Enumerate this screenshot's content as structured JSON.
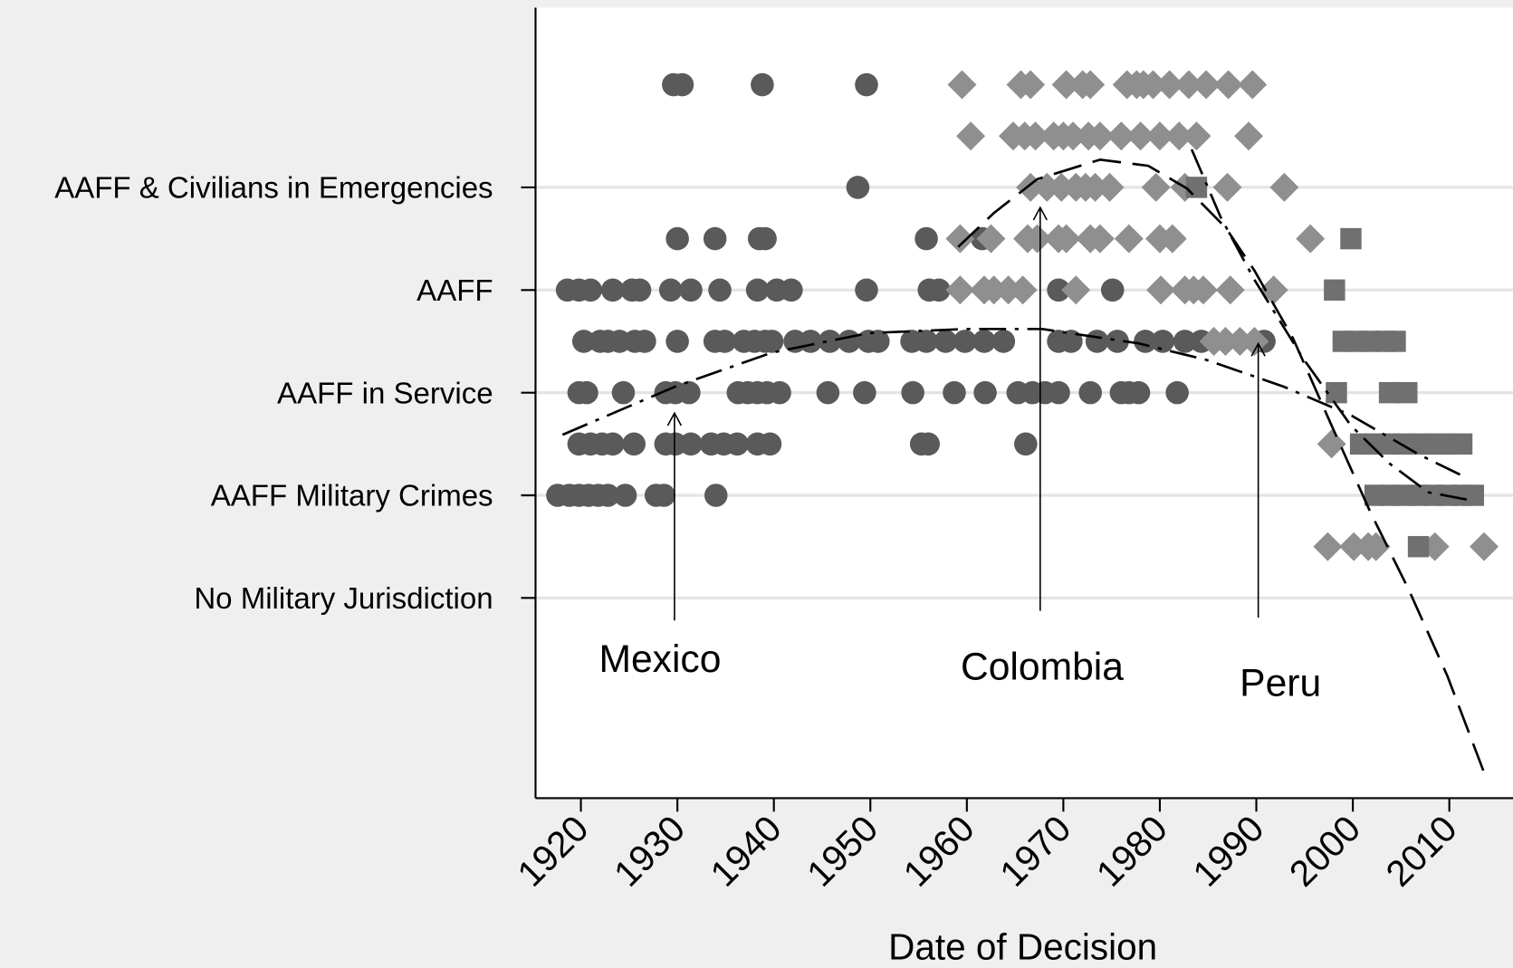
{
  "chart_data": {
    "type": "scatter",
    "xlabel": "Date of Decision",
    "xlim": [
      1915.3,
      2016.6
    ],
    "xticks": [
      1920,
      1930,
      1940,
      1950,
      1960,
      1970,
      1980,
      1990,
      2000,
      2010
    ],
    "ylim": [
      -1.95,
      5.75
    ],
    "yticks": [
      {
        "value": 0,
        "label": "No Military Jurisdiction"
      },
      {
        "value": 1,
        "label": "AAFF Military Crimes"
      },
      {
        "value": 2,
        "label": "AAFF in Service"
      },
      {
        "value": 3,
        "label": "AAFF"
      },
      {
        "value": 4,
        "label": "AAFF & Civilians in Emergencies"
      }
    ],
    "grid": true,
    "annotations": [
      "Mexico",
      "Colombia",
      "Peru"
    ],
    "series": [
      {
        "marker": "circle",
        "color": "#5a5a5a",
        "x": [
          1929.6,
          1930.5,
          1938.8,
          1949.6,
          1948.7,
          1930.0,
          1933.9,
          1938.5,
          1939.1,
          1955.8,
          1961.6,
          1918.6,
          1919.8,
          1921.0,
          1923.3,
          1925.3,
          1926.1,
          1929.3,
          1931.4,
          1934.4,
          1938.3,
          1940.3,
          1941.8,
          1949.6,
          1956.1,
          1957.1,
          1969.5,
          1975.1,
          1920.3,
          1922.0,
          1922.8,
          1924.0,
          1925.6,
          1926.6,
          1930.0,
          1933.9,
          1934.9,
          1936.9,
          1938.0,
          1939.1,
          1939.8,
          1942.2,
          1943.8,
          1945.8,
          1947.8,
          1949.8,
          1950.8,
          1954.3,
          1955.8,
          1957.8,
          1959.8,
          1961.8,
          1963.8,
          1969.5,
          1970.8,
          1973.5,
          1975.6,
          1978.5,
          1980.3,
          1982.6,
          1984.3,
          1990.8,
          1919.8,
          1920.6,
          1924.4,
          1928.8,
          1929.8,
          1931.2,
          1936.3,
          1937.3,
          1938.3,
          1939.3,
          1940.6,
          1945.6,
          1949.4,
          1954.4,
          1958.7,
          1961.9,
          1965.3,
          1966.8,
          1968.1,
          1969.5,
          1972.8,
          1976.0,
          1976.8,
          1977.8,
          1981.8,
          1919.8,
          1921.0,
          1922.2,
          1923.3,
          1925.5,
          1928.8,
          1929.8,
          1931.4,
          1933.5,
          1934.8,
          1936.2,
          1938.3,
          1939.6,
          1955.3,
          1956.0,
          1966.1,
          1917.6,
          1918.8,
          1919.8,
          1920.8,
          1921.8,
          1922.8,
          1924.6,
          1927.8,
          1928.6,
          1934.0
        ],
        "y": [
          5,
          5,
          5,
          5,
          4,
          3.5,
          3.5,
          3.5,
          3.5,
          3.5,
          3.5,
          3,
          3,
          3,
          3,
          3,
          3,
          3,
          3,
          3,
          3,
          3,
          3,
          3,
          3,
          3,
          3,
          3,
          2.5,
          2.5,
          2.5,
          2.5,
          2.5,
          2.5,
          2.5,
          2.5,
          2.5,
          2.5,
          2.5,
          2.5,
          2.5,
          2.5,
          2.5,
          2.5,
          2.5,
          2.5,
          2.5,
          2.5,
          2.5,
          2.5,
          2.5,
          2.5,
          2.5,
          2.5,
          2.5,
          2.5,
          2.5,
          2.5,
          2.5,
          2.5,
          2.5,
          2.5,
          2,
          2,
          2,
          2,
          2,
          2,
          2,
          2,
          2,
          2,
          2,
          2,
          2,
          2,
          2,
          2,
          2,
          2,
          2,
          2,
          2,
          2,
          2,
          2,
          2,
          1.5,
          1.5,
          1.5,
          1.5,
          1.5,
          1.5,
          1.5,
          1.5,
          1.5,
          1.5,
          1.5,
          1.5,
          1.5,
          1.5,
          1.5,
          1.5,
          1,
          1,
          1,
          1,
          1,
          1,
          1,
          1,
          1,
          1
        ]
      },
      {
        "marker": "diamond",
        "color": "#8f8f8f",
        "x": [
          1959.5,
          1965.6,
          1966.6,
          1970.3,
          1972.0,
          1972.8,
          1976.6,
          1977.6,
          1978.3,
          1979.3,
          1981.0,
          1983.0,
          1984.8,
          1987.1,
          1989.6,
          1960.4,
          1964.8,
          1966.0,
          1967.1,
          1969.0,
          1970.0,
          1971.0,
          1972.6,
          1973.8,
          1976.0,
          1978.0,
          1980.0,
          1982.0,
          1983.8,
          1989.2,
          1966.6,
          1968.3,
          1969.8,
          1971.3,
          1972.3,
          1973.3,
          1974.8,
          1979.6,
          1982.6,
          1987.0,
          1992.9,
          1959.3,
          1962.5,
          1966.3,
          1967.3,
          1969.5,
          1970.3,
          1972.8,
          1973.8,
          1976.8,
          1980.0,
          1981.3,
          1995.6,
          1959.3,
          1961.8,
          1962.8,
          1964.3,
          1965.8,
          1971.3,
          1980.1,
          1982.6,
          1983.5,
          1984.5,
          1987.3,
          1991.8,
          1985.6,
          1986.8,
          1988.3,
          1989.8,
          1997.8,
          1997.4,
          2000.1,
          2001.6,
          2002.4,
          2008.5,
          2013.6
        ],
        "y": [
          5,
          5,
          5,
          5,
          5,
          5,
          5,
          5,
          5,
          5,
          5,
          5,
          5,
          5,
          5,
          4.5,
          4.5,
          4.5,
          4.5,
          4.5,
          4.5,
          4.5,
          4.5,
          4.5,
          4.5,
          4.5,
          4.5,
          4.5,
          4.5,
          4.5,
          4,
          4,
          4,
          4,
          4,
          4,
          4,
          4,
          4,
          4,
          4,
          3.5,
          3.5,
          3.5,
          3.5,
          3.5,
          3.5,
          3.5,
          3.5,
          3.5,
          3.5,
          3.5,
          3.5,
          3,
          3,
          3,
          3,
          3,
          3,
          3,
          3,
          3,
          3,
          3,
          3,
          2.5,
          2.5,
          2.5,
          2.5,
          1.5,
          0.5,
          0.5,
          0.5,
          0.5,
          0.5,
          0.5
        ]
      },
      {
        "marker": "square",
        "color": "#707070",
        "x": [
          1983.8,
          1999.8,
          1998.1,
          1999.0,
          2000.3,
          2001.8,
          2003.3,
          2004.4,
          1998.3,
          2003.8,
          2005.6,
          2000.8,
          2002.3,
          2003.8,
          2005.3,
          2006.8,
          2008.3,
          2009.8,
          2011.3,
          2002.3,
          2003.8,
          2005.3,
          2006.8,
          2008.3,
          2009.8,
          2011.3,
          2012.5,
          2006.8
        ],
        "y": [
          4,
          3.5,
          3,
          2.5,
          2.5,
          2.5,
          2.5,
          2.5,
          2,
          2,
          2,
          1.5,
          1.5,
          1.5,
          1.5,
          1.5,
          1.5,
          1.5,
          1.5,
          1,
          1,
          1,
          1,
          1,
          1,
          1,
          1,
          0.5
        ]
      }
    ],
    "fit_lines": [
      {
        "color": "#000000",
        "dash": "dashdot",
        "x": [
          1918.1,
          1929.8,
          1939.8,
          1949.8,
          1959.8,
          1967.8,
          1977.8,
          1984.8,
          1992.8,
          1999.8,
          2006.8,
          2011.8
        ],
        "y": [
          1.59,
          2.06,
          2.39,
          2.58,
          2.62,
          2.62,
          2.48,
          2.32,
          2.06,
          1.78,
          1.4,
          1.17
        ]
      },
      {
        "color": "#000000",
        "dash": "dash",
        "x": [
          1959.1,
          1962.8,
          1967.3,
          1973.8,
          1978.8,
          1982.8,
          1986.8,
          1989.8,
          1993.8,
          1997.8,
          2001.8,
          2005.8,
          2009.8,
          2013.6
        ],
        "y": [
          3.42,
          3.75,
          4.08,
          4.27,
          4.21,
          3.99,
          3.61,
          3.19,
          2.53,
          1.68,
          0.84,
          0.08,
          -0.76,
          -1.7
        ]
      },
      {
        "color": "#000000",
        "dash": "dashdot",
        "x": [
          1983.3,
          1986.3,
          1989.8,
          1994.8,
          1999.8,
          2003.8,
          2007.8,
          2012.3
        ],
        "y": [
          4.37,
          3.71,
          3.1,
          2.34,
          1.68,
          1.31,
          1.03,
          0.95
        ]
      }
    ]
  }
}
